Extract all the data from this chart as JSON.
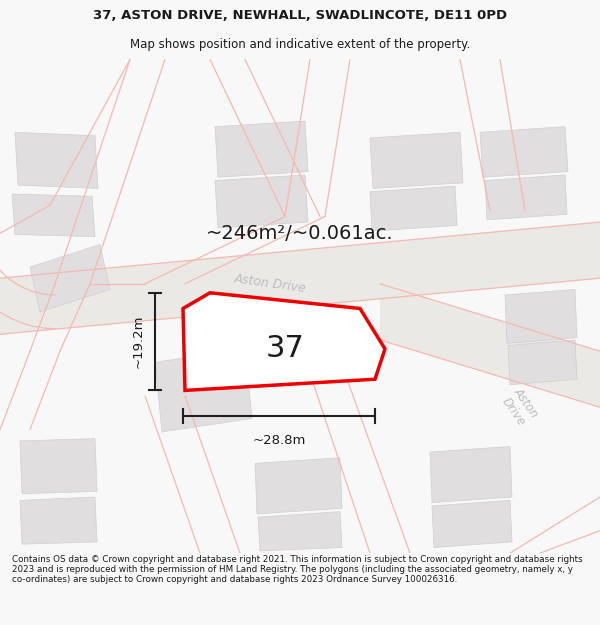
{
  "title": "37, ASTON DRIVE, NEWHALL, SWADLINCOTE, DE11 0PD",
  "subtitle": "Map shows position and indicative extent of the property.",
  "area_text": "~246m²/~0.061ac.",
  "number_label": "37",
  "width_label": "~28.8m",
  "height_label": "~19.2m",
  "footer": "Contains OS data © Crown copyright and database right 2021. This information is subject to Crown copyright and database rights 2023 and is reproduced with the permission of HM Land Registry. The polygons (including the associated geometry, namely x, y co-ordinates) are subject to Crown copyright and database rights 2023 Ordnance Survey 100026316.",
  "bg_color": "#f8f8f8",
  "map_bg": "#f2f1ef",
  "road_stroke": "#f5b8b0",
  "building_fill": "#e0dede",
  "building_stroke": "#d0cece",
  "highlight_fill": "#ffffff",
  "highlight_stroke": "#ee0000",
  "street_label_color": "#c0bcbc",
  "dim_line_color": "#202020",
  "title_color": "#1a1a1a",
  "footer_color": "#1a1a1a",
  "road_bg": "#ebe9e6"
}
